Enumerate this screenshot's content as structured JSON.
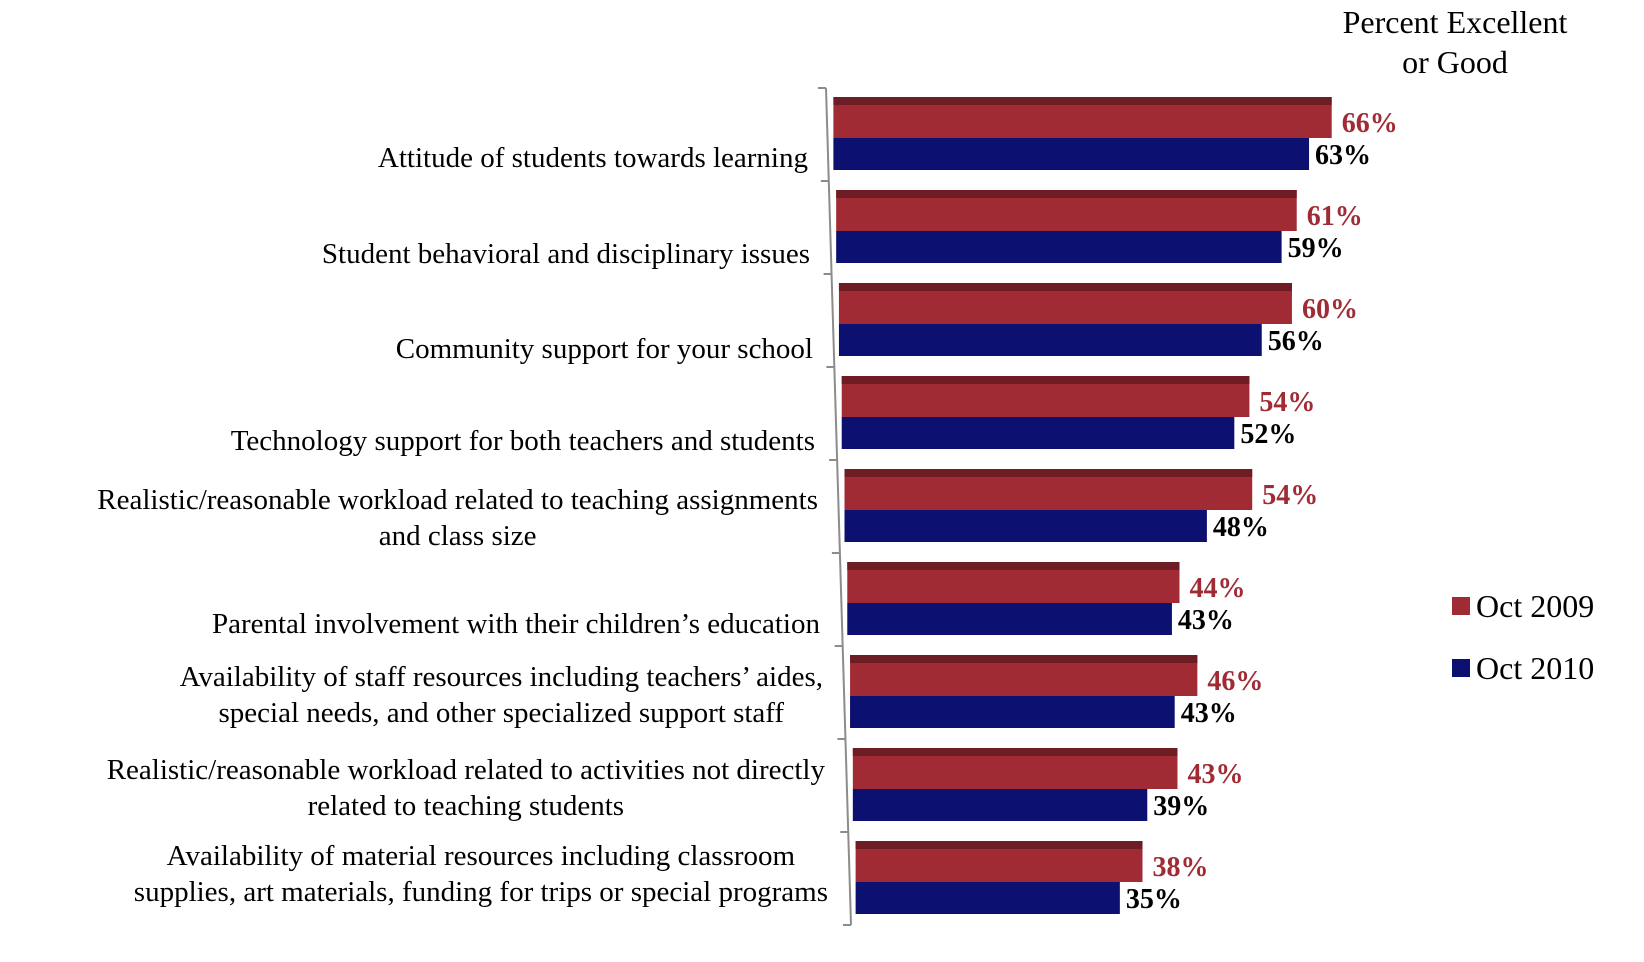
{
  "chart_data": {
    "type": "bar",
    "orientation": "horizontal",
    "title": "Percent Excellent\nor Good",
    "categories": [
      "Attitude of students towards learning",
      "Student behavioral and disciplinary issues",
      "Community support for your school",
      "Technology support for both teachers and students",
      "Realistic/reasonable workload related to teaching assignments\nand class size",
      "Parental involvement with their children’s education",
      "Availability of staff resources including teachers’ aides,\nspecial needs, and other specialized support staff",
      "Realistic/reasonable workload related to activities not directly\nrelated to teaching students",
      "Availability of material resources including classroom\nsupplies, art materials, funding for trips or special programs"
    ],
    "series": [
      {
        "name": "Oct 2009",
        "color": "#A02B35",
        "values": [
          66,
          61,
          60,
          54,
          54,
          44,
          46,
          43,
          38
        ],
        "labels": [
          "66%",
          "61%",
          "60%",
          "54%",
          "54%",
          "44%",
          "46%",
          "43%",
          "38%"
        ]
      },
      {
        "name": "Oct 2010",
        "color": "#0C1070",
        "values": [
          63,
          59,
          56,
          52,
          48,
          43,
          43,
          39,
          35
        ],
        "labels": [
          "63%",
          "59%",
          "56%",
          "52%",
          "48%",
          "43%",
          "43%",
          "39%",
          "35%"
        ]
      }
    ],
    "xlim": [
      0,
      100
    ],
    "legend_position": "right",
    "grid": false
  }
}
